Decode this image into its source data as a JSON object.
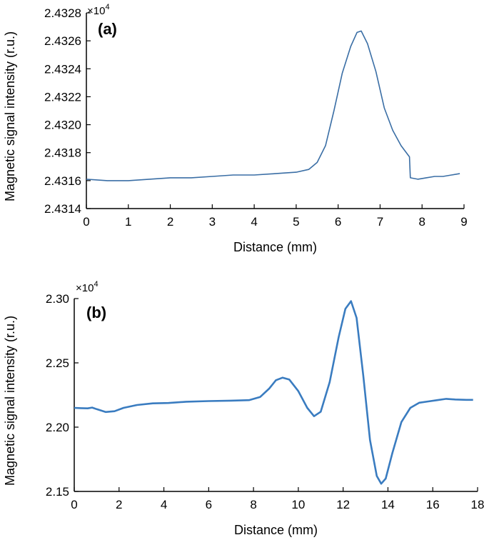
{
  "chart_data": [
    {
      "type": "line",
      "panel_label": "(a)",
      "xlabel": "Distance (mm)",
      "ylabel": "Magnetic signal intensity (r.u.)",
      "y_multiplier": "×10",
      "y_multiplier_exp": "4",
      "xlim": [
        0,
        9
      ],
      "ylim": [
        2.4314,
        2.4328
      ],
      "x_ticks": [
        "0",
        "1",
        "2",
        "3",
        "4",
        "5",
        "6",
        "7",
        "8",
        "9"
      ],
      "y_ticks": [
        "2.4314",
        "2.4316",
        "2.4318",
        "2.4320",
        "2.4322",
        "2.4324",
        "2.4326",
        "2.4328"
      ],
      "grid": false,
      "color": "#3a6ea5",
      "series": [
        {
          "x": [
            0.0,
            0.5,
            1.0,
            1.5,
            2.0,
            2.5,
            3.0,
            3.5,
            4.0,
            4.5,
            5.0,
            5.3,
            5.5,
            5.7,
            5.9,
            6.1,
            6.3,
            6.45,
            6.55,
            6.7,
            6.9,
            7.1,
            7.3,
            7.5,
            7.7,
            7.72,
            7.9,
            8.1,
            8.3,
            8.5,
            8.7,
            8.9
          ],
          "y": [
            2.43161,
            2.4316,
            2.4316,
            2.43161,
            2.43162,
            2.43162,
            2.43163,
            2.43164,
            2.43164,
            2.43165,
            2.43166,
            2.43168,
            2.43173,
            2.43185,
            2.4321,
            2.43237,
            2.43256,
            2.43266,
            2.43267,
            2.43258,
            2.43238,
            2.43212,
            2.43196,
            2.43185,
            2.43177,
            2.43162,
            2.43161,
            2.43162,
            2.43163,
            2.43163,
            2.43164,
            2.43165
          ]
        }
      ]
    },
    {
      "type": "line",
      "panel_label": "(b)",
      "xlabel": "Distance (mm)",
      "ylabel": "Magnetic signal intensity (r.u.)",
      "y_multiplier": "×10",
      "y_multiplier_exp": "4",
      "xlim": [
        0,
        18
      ],
      "ylim": [
        2.15,
        2.3
      ],
      "x_ticks": [
        "0",
        "2",
        "4",
        "6",
        "8",
        "10",
        "12",
        "14",
        "16",
        "18"
      ],
      "y_ticks": [
        "2.15",
        "2.20",
        "2.25",
        "2.30"
      ],
      "grid": false,
      "color": "#3a7cc0",
      "series": [
        {
          "x": [
            0.0,
            0.3,
            0.6,
            0.8,
            1.0,
            1.4,
            1.8,
            2.2,
            2.8,
            3.5,
            4.2,
            5.0,
            6.0,
            7.0,
            7.8,
            8.3,
            8.7,
            9.0,
            9.3,
            9.6,
            10.0,
            10.4,
            10.7,
            11.0,
            11.4,
            11.8,
            12.1,
            12.35,
            12.6,
            12.9,
            13.2,
            13.5,
            13.7,
            13.9,
            14.2,
            14.6,
            15.0,
            15.4,
            15.8,
            16.2,
            16.6,
            17.0,
            17.5,
            17.8
          ],
          "y": [
            2.215,
            2.2148,
            2.2146,
            2.2152,
            2.214,
            2.2118,
            2.2124,
            2.215,
            2.2172,
            2.2185,
            2.2188,
            2.2198,
            2.2203,
            2.2206,
            2.221,
            2.2235,
            2.23,
            2.2365,
            2.2385,
            2.237,
            2.228,
            2.215,
            2.2085,
            2.212,
            2.235,
            2.27,
            2.292,
            2.298,
            2.285,
            2.24,
            2.19,
            2.162,
            2.156,
            2.16,
            2.18,
            2.204,
            2.215,
            2.219,
            2.22,
            2.221,
            2.222,
            2.2215,
            2.2212,
            2.2212
          ]
        }
      ]
    }
  ]
}
